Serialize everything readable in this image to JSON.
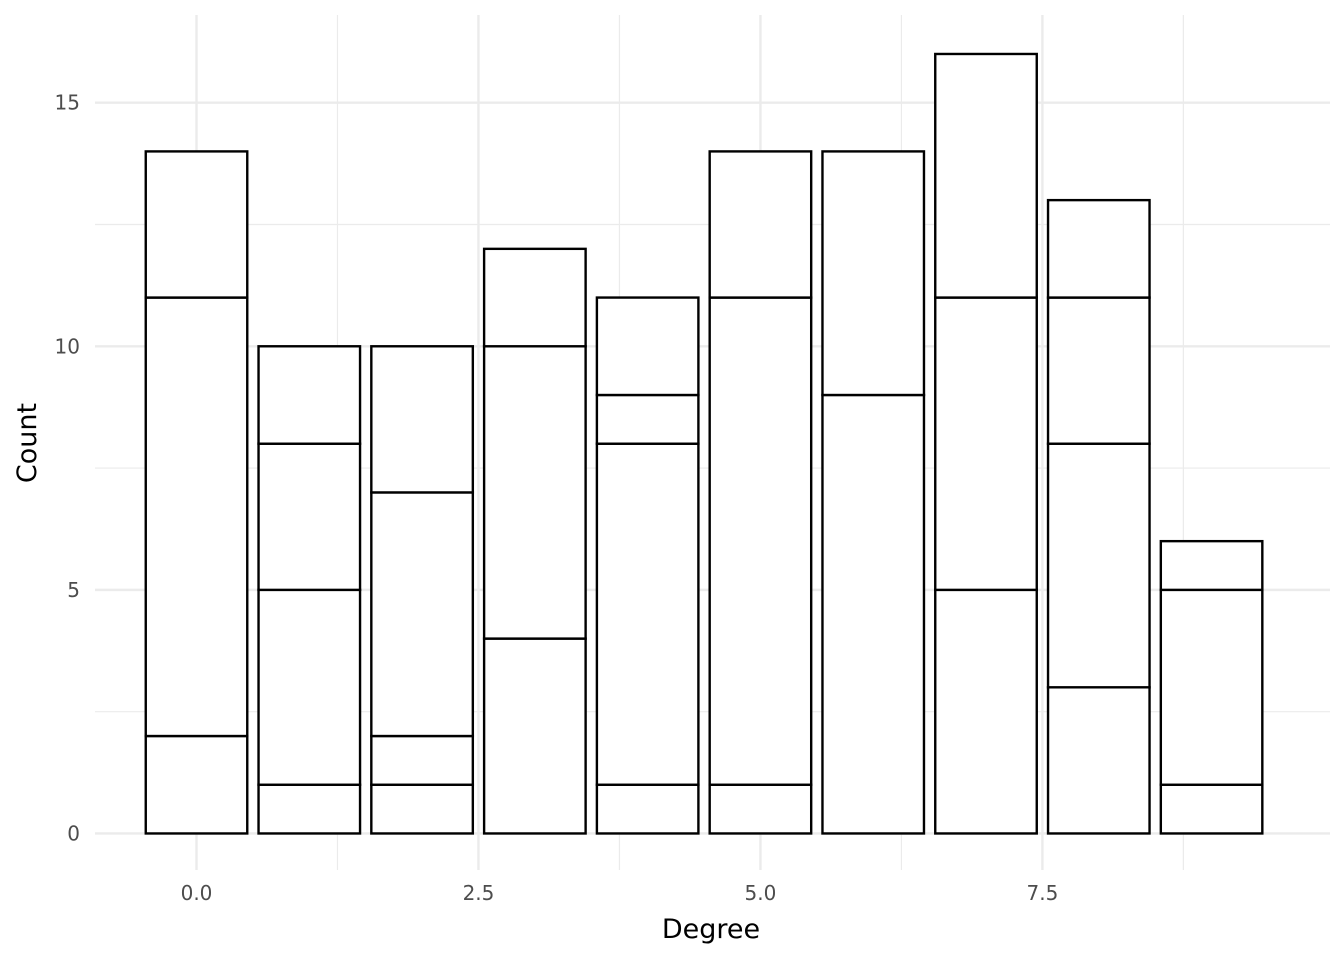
{
  "chart_data": {
    "type": "bar",
    "xlabel": "Degree",
    "ylabel": "Count",
    "xlim": [
      -0.9,
      10.05
    ],
    "ylim": [
      -0.75,
      16.8
    ],
    "x_ticks": [
      0.0,
      2.5,
      5.0,
      7.5
    ],
    "x_tick_labels": [
      "0.0",
      "2.5",
      "5.0",
      "7.5"
    ],
    "y_ticks": [
      0,
      5,
      10,
      15
    ],
    "y_tick_labels": [
      "0",
      "5",
      "10",
      "15"
    ],
    "grid": true,
    "bar_width": 0.9,
    "fill": "#ffffff",
    "outline": "#000000",
    "bars": [
      {
        "x": 0,
        "total": 14,
        "segment_boundaries": [
          2,
          11
        ]
      },
      {
        "x": 1,
        "total": 10,
        "segment_boundaries": [
          1,
          5,
          8
        ]
      },
      {
        "x": 2,
        "total": 10,
        "segment_boundaries": [
          1,
          2,
          7
        ]
      },
      {
        "x": 3,
        "total": 12,
        "segment_boundaries": [
          4,
          10
        ]
      },
      {
        "x": 4,
        "total": 11,
        "segment_boundaries": [
          1,
          8,
          9
        ]
      },
      {
        "x": 5,
        "total": 14,
        "segment_boundaries": [
          1,
          11
        ]
      },
      {
        "x": 6,
        "total": 14,
        "segment_boundaries": [
          9
        ]
      },
      {
        "x": 7,
        "total": 16,
        "segment_boundaries": [
          5,
          11
        ]
      },
      {
        "x": 8,
        "total": 13,
        "segment_boundaries": [
          3,
          8,
          11
        ]
      },
      {
        "x": 9,
        "total": 6,
        "segment_boundaries": [
          1,
          5
        ]
      }
    ]
  }
}
